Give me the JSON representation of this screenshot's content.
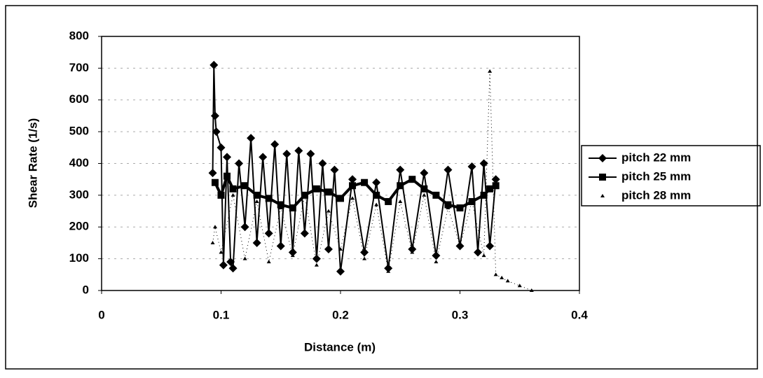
{
  "chart_data": {
    "type": "line",
    "xlabel": "Distance (m)",
    "ylabel": "Shear Rate (1/s)",
    "xlim": [
      0,
      0.4
    ],
    "xticks": [
      0,
      0.1,
      0.2,
      0.3,
      0.4
    ],
    "ylim": [
      0,
      800
    ],
    "yticks": [
      0,
      100,
      200,
      300,
      400,
      500,
      600,
      700,
      800
    ],
    "grid": true,
    "legend": "right",
    "series": [
      {
        "name": "pitch 22 mm",
        "color": "#000000",
        "marker": "diamond",
        "x": [
          0.093,
          0.094,
          0.095,
          0.096,
          0.1,
          0.102,
          0.105,
          0.108,
          0.11,
          0.115,
          0.12,
          0.125,
          0.13,
          0.135,
          0.14,
          0.145,
          0.15,
          0.155,
          0.16,
          0.165,
          0.17,
          0.175,
          0.18,
          0.185,
          0.19,
          0.195,
          0.2,
          0.21,
          0.22,
          0.23,
          0.24,
          0.25,
          0.26,
          0.27,
          0.28,
          0.29,
          0.3,
          0.31,
          0.315,
          0.32,
          0.325,
          0.33
        ],
        "values": [
          370,
          710,
          550,
          500,
          450,
          80,
          420,
          90,
          70,
          400,
          200,
          480,
          150,
          420,
          180,
          460,
          140,
          430,
          120,
          440,
          180,
          430,
          100,
          400,
          130,
          380,
          60,
          350,
          120,
          340,
          70,
          380,
          130,
          370,
          110,
          380,
          140,
          390,
          120,
          400,
          140,
          350
        ]
      },
      {
        "name": "pitch 25 mm",
        "color": "#000000",
        "marker": "square",
        "x": [
          0.095,
          0.1,
          0.105,
          0.11,
          0.12,
          0.13,
          0.14,
          0.15,
          0.16,
          0.17,
          0.18,
          0.19,
          0.2,
          0.21,
          0.22,
          0.23,
          0.24,
          0.25,
          0.26,
          0.27,
          0.28,
          0.29,
          0.3,
          0.31,
          0.32,
          0.325,
          0.33
        ],
        "values": [
          340,
          300,
          360,
          320,
          330,
          300,
          290,
          270,
          260,
          300,
          320,
          310,
          290,
          330,
          340,
          300,
          280,
          330,
          350,
          320,
          300,
          270,
          260,
          280,
          300,
          320,
          330
        ]
      },
      {
        "name": "pitch 28 mm",
        "color": "#000000",
        "marker": "triangle",
        "x": [
          0.093,
          0.095,
          0.1,
          0.11,
          0.12,
          0.13,
          0.14,
          0.15,
          0.16,
          0.17,
          0.18,
          0.19,
          0.2,
          0.21,
          0.22,
          0.23,
          0.24,
          0.25,
          0.26,
          0.27,
          0.28,
          0.29,
          0.3,
          0.31,
          0.32,
          0.325,
          0.33,
          0.335,
          0.34,
          0.35,
          0.36
        ],
        "values": [
          150,
          200,
          120,
          300,
          100,
          280,
          90,
          260,
          110,
          300,
          80,
          250,
          130,
          290,
          100,
          270,
          60,
          280,
          120,
          300,
          90,
          260,
          140,
          280,
          110,
          690,
          50,
          40,
          30,
          15,
          0
        ]
      }
    ]
  }
}
